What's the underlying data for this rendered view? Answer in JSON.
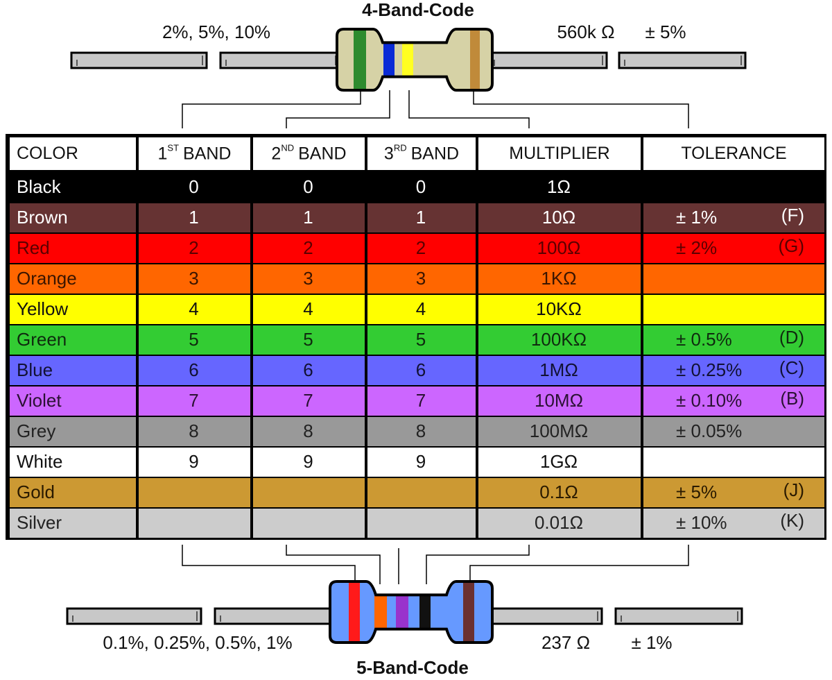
{
  "top": {
    "title": "4-Band-Code",
    "left_label": "2%, 5%, 10%",
    "value": "560k Ω",
    "tolerance": "± 5%"
  },
  "bottom": {
    "title": "5-Band-Code",
    "left_label": "0.1%, 0.25%, 0.5%, 1%",
    "value": "237 Ω",
    "tolerance": "± 1%"
  },
  "table": {
    "header": {
      "color": "COLOR",
      "band1": {
        "num": "1",
        "sup": "ST",
        "text": "BAND"
      },
      "band2": {
        "num": "2",
        "sup": "ND",
        "text": "BAND"
      },
      "band3": {
        "num": "3",
        "sup": "RD",
        "text": "BAND"
      },
      "multiplier": "MULTIPLIER",
      "tolerance": "TOLERANCE"
    },
    "rows": [
      {
        "name": "Black",
        "fill": "#000000",
        "ink": "#ffffff",
        "band1": "0",
        "band2": "0",
        "band3": "0",
        "multiplier": "1Ω"
      },
      {
        "name": "Brown",
        "fill": "#663333",
        "ink": "#ffffff",
        "band1": "1",
        "band2": "1",
        "band3": "1",
        "multiplier": "10Ω",
        "tolerance": "± 1%",
        "code": "(F)"
      },
      {
        "name": "Red",
        "fill": "#ff0000",
        "ink": "#5a0000",
        "band1": "2",
        "band2": "2",
        "band3": "2",
        "multiplier": "100Ω",
        "tolerance": "± 2%",
        "code": "(G)"
      },
      {
        "name": "Orange",
        "fill": "#ff6600",
        "ink": "#3a1500",
        "band1": "3",
        "band2": "3",
        "band3": "3",
        "multiplier": "1KΩ"
      },
      {
        "name": "Yellow",
        "fill": "#ffff00",
        "ink": "#111111",
        "band1": "4",
        "band2": "4",
        "band3": "4",
        "multiplier": "10KΩ"
      },
      {
        "name": "Green",
        "fill": "#33cc33",
        "ink": "#0f2a0f",
        "band1": "5",
        "band2": "5",
        "band3": "5",
        "multiplier": "100KΩ",
        "tolerance": "± 0.5%",
        "code": "(D)"
      },
      {
        "name": "Blue",
        "fill": "#6666ff",
        "ink": "#111133",
        "band1": "6",
        "band2": "6",
        "band3": "6",
        "multiplier": "1MΩ",
        "tolerance": "± 0.25%",
        "code": "(C)"
      },
      {
        "name": "Violet",
        "fill": "#cc66ff",
        "ink": "#2a1133",
        "band1": "7",
        "band2": "7",
        "band3": "7",
        "multiplier": "10MΩ",
        "tolerance": "± 0.10%",
        "code": "(B)"
      },
      {
        "name": "Grey",
        "fill": "#999999",
        "ink": "#222222",
        "band1": "8",
        "band2": "8",
        "band3": "8",
        "multiplier": "100MΩ",
        "tolerance": "± 0.05%"
      },
      {
        "name": "White",
        "fill": "#ffffff",
        "ink": "#111111",
        "band1": "9",
        "band2": "9",
        "band3": "9",
        "multiplier": "1GΩ"
      },
      {
        "name": "Gold",
        "fill": "#cc9933",
        "ink": "#2a1a00",
        "multiplier": "0.1Ω",
        "tolerance": "± 5%",
        "code": "(J)"
      },
      {
        "name": "Silver",
        "fill": "#cccccc",
        "ink": "#222222",
        "multiplier": "0.01Ω",
        "tolerance": "± 10%",
        "code": "(K)"
      }
    ]
  }
}
